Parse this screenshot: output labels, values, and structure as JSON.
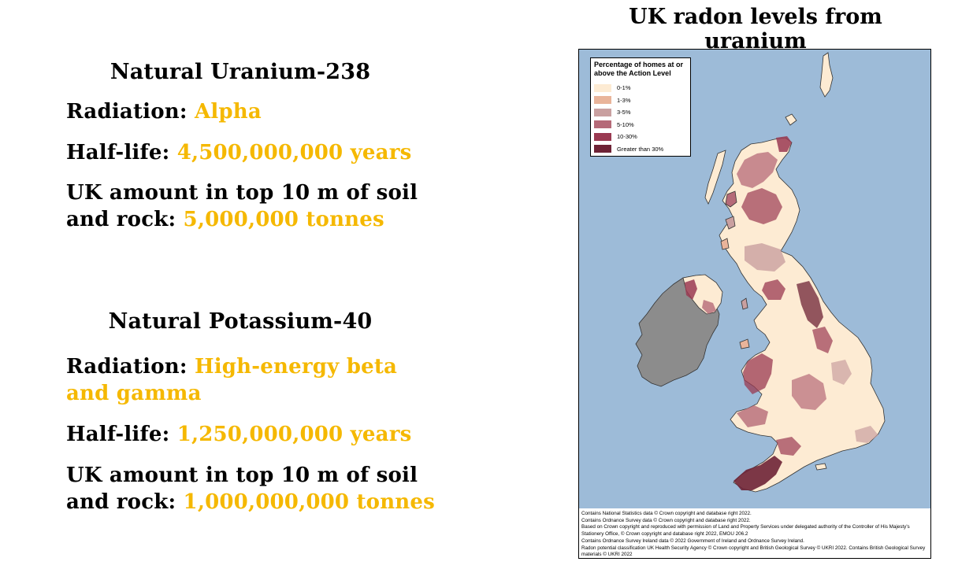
{
  "uranium": {
    "heading": "Natural Uranium-238",
    "radiation_label": "Radiation:",
    "radiation_value": "Alpha",
    "halflife_label": "Half-life:",
    "halflife_value": "4,500,000,000 years",
    "amount_label_line1": "UK amount in top 10 m of soil",
    "amount_label_line2": "and rock:",
    "amount_value": "5,000,000 tonnes"
  },
  "potassium": {
    "heading": "Natural Potassium-40",
    "radiation_label": "Radiation:",
    "radiation_value_line1": "High-energy beta",
    "radiation_value_line2": "and gamma",
    "halflife_label": "Half-life:",
    "halflife_value": "1,250,000,000 years",
    "amount_label_line1": "UK amount in top 10 m of soil",
    "amount_label_line2": "and rock:",
    "amount_value": "1,000,000,000 tonnes"
  },
  "map": {
    "title": "UK radon levels from uranium",
    "legend_title": "Percentage of homes at or above the Action Level",
    "legend": [
      {
        "label": "0-1%",
        "color": "#fdebd3"
      },
      {
        "label": "1-3%",
        "color": "#e9b49a"
      },
      {
        "label": "3-5%",
        "color": "#c9a0a0"
      },
      {
        "label": "5-10%",
        "color": "#b56a78"
      },
      {
        "label": "10-30%",
        "color": "#9a3a52"
      },
      {
        "label": "Greater than 30%",
        "color": "#6e2336"
      }
    ],
    "colors": {
      "sea": "#9dbbd8",
      "ireland": "#8c8c8c",
      "highlight": "#f5b800"
    },
    "credits": [
      "Contains National Statistics data © Crown copyright and database right 2022.",
      "Contains Ordnance Survey data © Crown copyright and database right 2022.",
      "Based on Crown copyright and reproduced with permission of Land and Property Services under delegated authority of the Controller of His Majesty's Stationery Office, © Crown copyright and database right 2022, EMOU 206.2",
      "Contains Ordnance Survey Ireland data © 2022 Government of Ireland and Ordnance Survey Ireland.",
      "Radon potential classification UK Health Security Agency © Crown copyright and British Geological Survey © UKRI 2022. Contains British Geological Survey materials © UKRI 2022"
    ]
  }
}
